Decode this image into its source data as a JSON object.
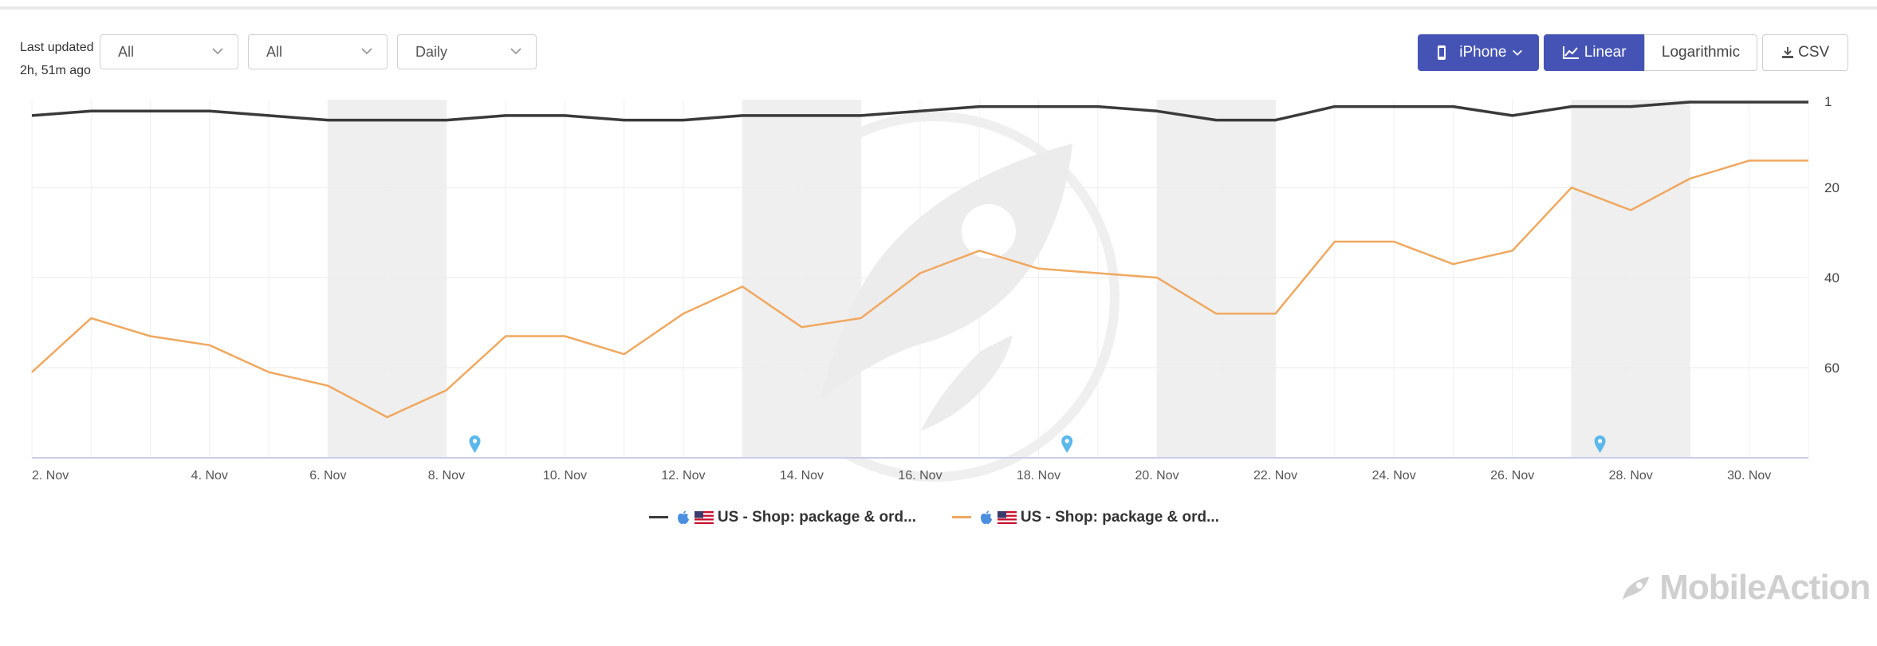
{
  "header": {
    "last_updated_label": "Last updated",
    "last_updated_value": "2h, 51m ago",
    "filters": [
      {
        "value": "All"
      },
      {
        "value": "All"
      },
      {
        "value": "Daily"
      }
    ],
    "device_button": "iPhone",
    "linear_button": "Linear",
    "log_button": "Logarithmic",
    "csv_button": "CSV"
  },
  "colors": {
    "accent": "#4554b4",
    "series1": "#3a3a3a",
    "series2": "#f0a860",
    "weekend_band": "#efefef",
    "marker": "#5bb8ec"
  },
  "icons": {
    "device": "phone-icon",
    "linear": "line-chart-icon",
    "csv": "download-icon",
    "marker": "map-pin-icon",
    "legend_store": "apple-icon",
    "legend_flag": "us-flag-icon"
  },
  "chart_data": {
    "type": "line",
    "x": [
      "1. Nov",
      "2. Nov",
      "3. Nov",
      "4. Nov",
      "5. Nov",
      "6. Nov",
      "7. Nov",
      "8. Nov",
      "9. Nov",
      "10. Nov",
      "11. Nov",
      "12. Nov",
      "13. Nov",
      "14. Nov",
      "15. Nov",
      "16. Nov",
      "17. Nov",
      "18. Nov",
      "19. Nov",
      "20. Nov",
      "21. Nov",
      "22. Nov",
      "23. Nov",
      "24. Nov",
      "25. Nov",
      "26. Nov",
      "27. Nov",
      "28. Nov",
      "29. Nov",
      "30. Nov",
      "1. Dec"
    ],
    "x_tick_labels": [
      "2. Nov",
      "4. Nov",
      "6. Nov",
      "8. Nov",
      "10. Nov",
      "12. Nov",
      "14. Nov",
      "16. Nov",
      "18. Nov",
      "20. Nov",
      "22. Nov",
      "24. Nov",
      "26. Nov",
      "28. Nov",
      "30. Nov"
    ],
    "series": [
      {
        "name": "US - Shop: package & ord...",
        "color": "#3a3a3a",
        "values": [
          4,
          3,
          3,
          3,
          4,
          5,
          5,
          5,
          4,
          4,
          5,
          5,
          4,
          4,
          4,
          3,
          2,
          2,
          2,
          3,
          5,
          5,
          2,
          2,
          2,
          4,
          2,
          2,
          1,
          1,
          1
        ]
      },
      {
        "name": "US - Shop: package & ord...",
        "color": "#f0a860",
        "values": [
          61,
          49,
          53,
          55,
          61,
          64,
          71,
          65,
          53,
          53,
          57,
          48,
          42,
          51,
          49,
          39,
          34,
          38,
          39,
          40,
          48,
          48,
          32,
          32,
          37,
          34,
          20,
          25,
          18,
          14,
          14
        ]
      }
    ],
    "y_ticks": [
      1,
      20,
      40,
      60
    ],
    "ylim": [
      1,
      80
    ],
    "y_inverted": true,
    "y_axis_side": "right",
    "scale": "linear",
    "weekend_bands": [
      [
        "6. Nov",
        "8. Nov"
      ],
      [
        "13. Nov",
        "15. Nov"
      ],
      [
        "20. Nov",
        "22. Nov"
      ],
      [
        "27. Nov",
        "29. Nov"
      ]
    ],
    "event_markers": [
      "8. Nov",
      "18. Nov",
      "27. Nov"
    ],
    "grid": true,
    "legend_position": "bottom-center"
  },
  "brand": {
    "watermark_text": "MobileAction"
  }
}
